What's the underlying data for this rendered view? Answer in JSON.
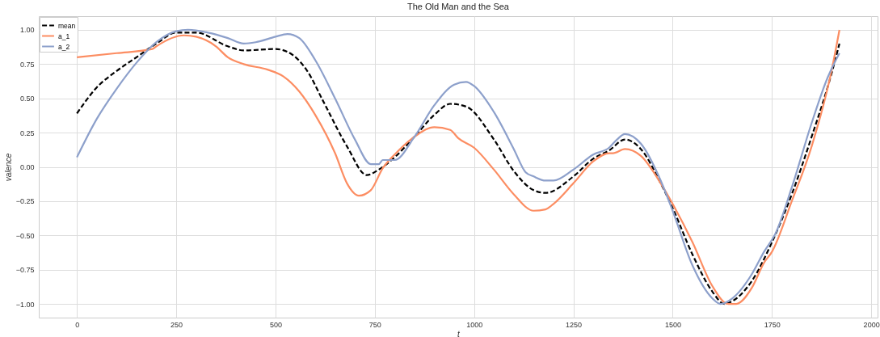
{
  "chart_data": {
    "type": "line",
    "title": "The Old Man and the Sea",
    "xlabel": "t",
    "ylabel": "valence",
    "xlim": [
      -96,
      2016
    ],
    "ylim": [
      -1.1,
      1.1
    ],
    "xticks": [
      0,
      250,
      500,
      750,
      1000,
      1250,
      1500,
      1750,
      2000
    ],
    "yticks": [
      {
        "value": -1,
        "label": "−1.00"
      },
      {
        "value": -0.75,
        "label": "−0.75"
      },
      {
        "value": -0.5,
        "label": "−0.50"
      },
      {
        "value": -0.25,
        "label": "−0.25"
      },
      {
        "value": 0,
        "label": "0.00"
      },
      {
        "value": 0.25,
        "label": "0.25"
      },
      {
        "value": 0.5,
        "label": "0.50"
      },
      {
        "value": 0.75,
        "label": "0.75"
      },
      {
        "value": 1,
        "label": "1.00"
      }
    ],
    "grid": true,
    "legend": "top left",
    "marker": "none",
    "series": [
      {
        "name": "mean",
        "color": "#000000",
        "line_style": "dashed",
        "x": [
          0,
          50,
          100,
          150,
          200,
          250,
          300,
          380,
          420,
          500,
          530,
          580,
          620,
          680,
          730,
          760,
          800,
          850,
          900,
          940,
          980,
          1050,
          1100,
          1150,
          1180,
          1250,
          1300,
          1340,
          1380,
          1420,
          1470,
          1500,
          1550,
          1600,
          1630,
          1650,
          1700,
          1750,
          1800,
          1850,
          1900,
          1920
        ],
        "values": [
          0.39,
          0.58,
          0.7,
          0.8,
          0.9,
          0.98,
          0.98,
          0.88,
          0.85,
          0.86,
          0.84,
          0.7,
          0.48,
          0.15,
          -0.06,
          -0.02,
          0.07,
          0.22,
          0.38,
          0.46,
          0.44,
          0.2,
          -0.03,
          -0.17,
          -0.19,
          -0.07,
          0.06,
          0.12,
          0.2,
          0.13,
          -0.12,
          -0.3,
          -0.64,
          -0.91,
          -1.0,
          -0.98,
          -0.83,
          -0.55,
          -0.2,
          0.22,
          0.68,
          0.9
        ]
      },
      {
        "name": "a_1",
        "color": "#fc8d62",
        "line_style": "solid",
        "x": [
          0,
          100,
          190,
          200,
          270,
          300,
          350,
          380,
          420,
          480,
          520,
          560,
          600,
          650,
          680,
          710,
          740,
          770,
          800,
          850,
          900,
          940,
          960,
          1000,
          1050,
          1100,
          1150,
          1180,
          1200,
          1250,
          1300,
          1340,
          1350,
          1380,
          1420,
          1470,
          1500,
          1550,
          1600,
          1640,
          1660,
          1700,
          1730,
          1750,
          1800,
          1850,
          1900,
          1920
        ],
        "values": [
          0.8,
          0.83,
          0.86,
          0.88,
          0.96,
          0.95,
          0.88,
          0.8,
          0.75,
          0.71,
          0.66,
          0.55,
          0.38,
          0.1,
          -0.12,
          -0.21,
          -0.17,
          -0.01,
          0.09,
          0.22,
          0.29,
          0.27,
          0.21,
          0.14,
          -0.02,
          -0.2,
          -0.32,
          -0.31,
          -0.27,
          -0.12,
          0.04,
          0.1,
          0.1,
          0.13,
          0.08,
          -0.12,
          -0.27,
          -0.55,
          -0.87,
          -1.0,
          -1.0,
          -0.88,
          -0.7,
          -0.62,
          -0.25,
          0.15,
          0.7,
          1.0
        ]
      },
      {
        "name": "a_2",
        "color": "#8da0cb",
        "line_style": "solid",
        "x": [
          0,
          50,
          100,
          150,
          200,
          250,
          280,
          330,
          380,
          420,
          450,
          500,
          530,
          560,
          600,
          650,
          700,
          740,
          760,
          770,
          800,
          850,
          900,
          950,
          980,
          1000,
          1050,
          1100,
          1130,
          1150,
          1180,
          1200,
          1250,
          1300,
          1340,
          1360,
          1380,
          1420,
          1470,
          1500,
          1550,
          1600,
          1620,
          1650,
          1700,
          1730,
          1760,
          1800,
          1850,
          1890,
          1920
        ],
        "values": [
          0.07,
          0.35,
          0.57,
          0.76,
          0.91,
          0.99,
          1.0,
          0.98,
          0.94,
          0.9,
          0.91,
          0.95,
          0.97,
          0.94,
          0.78,
          0.5,
          0.2,
          0.02,
          0.02,
          0.05,
          0.05,
          0.22,
          0.45,
          0.6,
          0.62,
          0.59,
          0.4,
          0.13,
          -0.04,
          -0.07,
          -0.1,
          -0.1,
          -0.02,
          0.09,
          0.14,
          0.2,
          0.24,
          0.17,
          -0.1,
          -0.32,
          -0.72,
          -0.96,
          -1.0,
          -0.96,
          -0.78,
          -0.62,
          -0.48,
          -0.15,
          0.32,
          0.65,
          0.83
        ]
      }
    ]
  }
}
